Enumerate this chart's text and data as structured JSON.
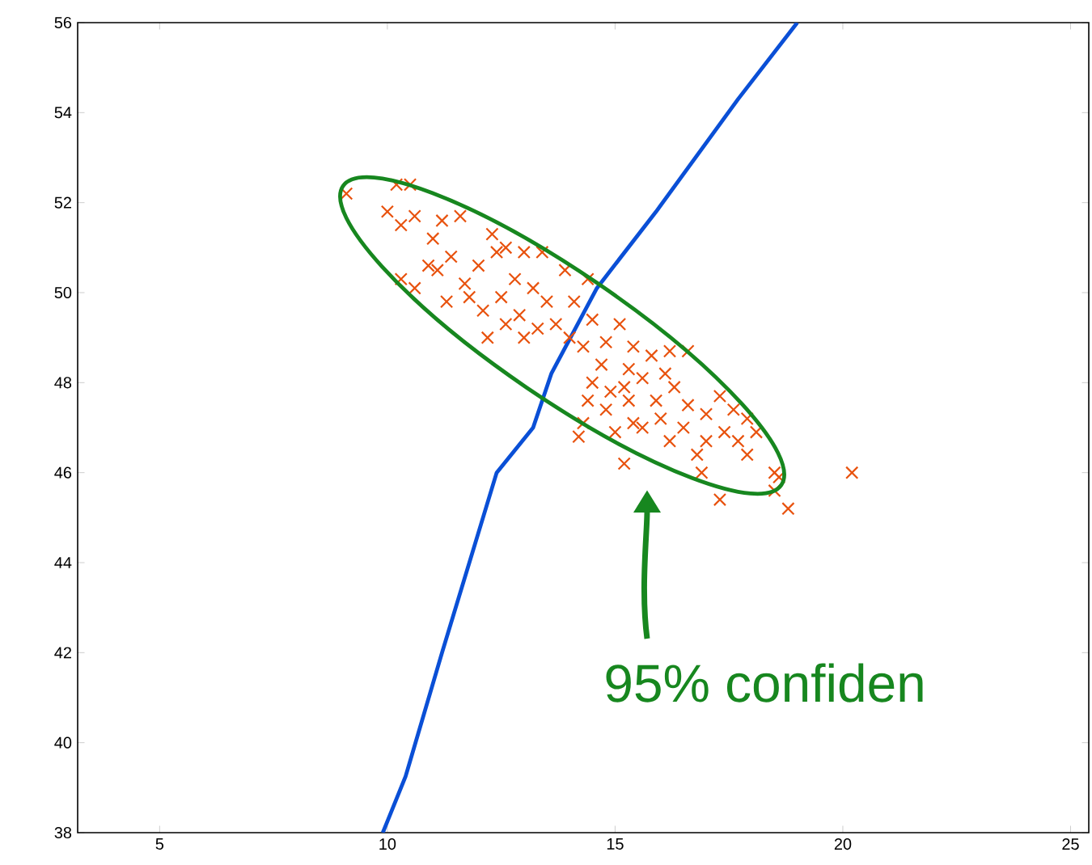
{
  "chart_data": {
    "type": "scatter",
    "xlim": [
      3.2,
      25.4
    ],
    "ylim": [
      38,
      56
    ],
    "xticks": [
      5,
      10,
      15,
      20,
      25
    ],
    "yticks": [
      38,
      40,
      42,
      44,
      46,
      48,
      50,
      52,
      54,
      56
    ],
    "grid": false,
    "series": [
      {
        "marker": "cross",
        "color": "#e8520e",
        "x": [
          9.1,
          10.2,
          10.5,
          10.0,
          10.3,
          10.6,
          11.2,
          11.6,
          12.3,
          11.0,
          10.9,
          10.3,
          10.6,
          11.1,
          11.4,
          11.7,
          12.0,
          12.4,
          11.8,
          11.3,
          12.1,
          12.5,
          12.8,
          13.0,
          12.6,
          13.4,
          13.2,
          12.9,
          13.5,
          13.9,
          13.7,
          14.1,
          14.4,
          14.5,
          13.3,
          12.6,
          12.2,
          13.0,
          14.0,
          14.3,
          14.8,
          15.1,
          15.4,
          15.3,
          14.7,
          14.5,
          14.9,
          15.2,
          15.6,
          15.8,
          16.1,
          16.2,
          16.6,
          14.4,
          14.8,
          15.3,
          15.9,
          16.3,
          16.6,
          16.0,
          15.6,
          14.3,
          15.0,
          16.5,
          17.0,
          17.3,
          17.6,
          17.9,
          17.4,
          17.0,
          16.8,
          17.7,
          18.1,
          17.9,
          16.2,
          15.4,
          15.2,
          14.2,
          16.9,
          17.3,
          18.5,
          18.5,
          18.6,
          18.8,
          20.2
        ],
        "values": [
          52.2,
          52.4,
          52.4,
          51.8,
          51.5,
          51.7,
          51.6,
          51.7,
          51.3,
          51.2,
          50.6,
          50.3,
          50.1,
          50.5,
          50.8,
          50.2,
          50.6,
          50.9,
          49.9,
          49.8,
          49.6,
          49.9,
          50.3,
          50.9,
          51.0,
          50.9,
          50.1,
          49.5,
          49.8,
          50.5,
          49.3,
          49.8,
          50.3,
          49.4,
          49.2,
          49.3,
          49.0,
          49.0,
          49.0,
          48.8,
          48.9,
          49.3,
          48.8,
          48.3,
          48.4,
          48.0,
          47.8,
          47.9,
          48.1,
          48.6,
          48.2,
          48.7,
          48.7,
          47.6,
          47.4,
          47.6,
          47.6,
          47.9,
          47.5,
          47.2,
          47.0,
          47.1,
          46.9,
          47.0,
          47.3,
          47.7,
          47.4,
          47.2,
          46.9,
          46.7,
          46.4,
          46.7,
          46.9,
          46.4,
          46.7,
          47.1,
          46.2,
          46.8,
          46.0,
          45.4,
          46.0,
          45.6,
          45.9,
          45.2,
          46.0
        ]
      },
      {
        "type": "line",
        "marker": "none",
        "line_style": "solid",
        "color": "#0a4fd6",
        "x": [
          9.9,
          10.4,
          11.2,
          12.4,
          13.2,
          13.6,
          14.6,
          15.9,
          17.7,
          19.0
        ],
        "values": [
          38,
          39.25,
          42,
          46,
          47.0,
          48.2,
          50.1,
          51.8,
          54.3,
          56
        ]
      }
    ],
    "annotations": [
      "95% confiden"
    ]
  }
}
